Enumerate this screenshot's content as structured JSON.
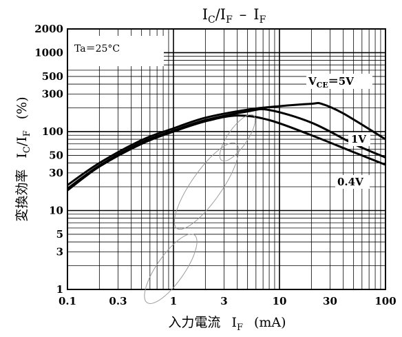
{
  "chart_data": {
    "type": "line",
    "title": {
      "lhs_main": "I",
      "lhs_sub": "C",
      "slash": "/",
      "den_main": "I",
      "den_sub": "F",
      "dash": "–",
      "rhs_main": "I",
      "rhs_sub": "F"
    },
    "xlabel": {
      "jp": "入力電流",
      "sym": "I",
      "sub": "F",
      "unit": "(mA)"
    },
    "ylabel": {
      "jp": "変換効率",
      "sym_num": "I",
      "sub_num": "C",
      "slash": "/",
      "sym_den": "I",
      "sub_den": "F",
      "unit": "(%)"
    },
    "xscale": "log",
    "yscale": "log",
    "xlim": [
      0.1,
      100
    ],
    "ylim": [
      1,
      2000
    ],
    "grid": true,
    "x_ticks": [
      {
        "value": 0.1,
        "label": "0.1"
      },
      {
        "value": 0.3,
        "label": "0.3"
      },
      {
        "value": 1,
        "label": "1"
      },
      {
        "value": 3,
        "label": "3"
      },
      {
        "value": 10,
        "label": "10"
      },
      {
        "value": 30,
        "label": "30"
      },
      {
        "value": 100,
        "label": "100"
      }
    ],
    "y_ticks": [
      {
        "value": 1,
        "label": "1"
      },
      {
        "value": 3,
        "label": "3"
      },
      {
        "value": 5,
        "label": "5"
      },
      {
        "value": 10,
        "label": "10"
      },
      {
        "value": 30,
        "label": "30"
      },
      {
        "value": 50,
        "label": "50"
      },
      {
        "value": 100,
        "label": "100"
      },
      {
        "value": 300,
        "label": "300"
      },
      {
        "value": 500,
        "label": "500"
      },
      {
        "value": 1000,
        "label": "1000"
      },
      {
        "value": 2000,
        "label": "2000"
      }
    ],
    "annotation": "Ta＝25°C",
    "series": [
      {
        "name": "VCE = 5V",
        "label_main": "V",
        "label_sub": "CE",
        "label_rest": "＝5V",
        "x": [
          0.1,
          0.2,
          0.5,
          1,
          2,
          5,
          10,
          20,
          25,
          40,
          100
        ],
        "y": [
          21,
          40,
          78,
          110,
          150,
          190,
          210,
          225,
          225,
          170,
          80
        ]
      },
      {
        "name": "1V",
        "label": "1V",
        "x": [
          0.1,
          0.2,
          0.5,
          1,
          2,
          5,
          8,
          20,
          50,
          100
        ],
        "y": [
          19,
          37,
          73,
          103,
          140,
          180,
          188,
          130,
          70,
          47
        ]
      },
      {
        "name": "0.4V",
        "label": "0.4V",
        "x": [
          0.1,
          0.2,
          0.5,
          1,
          2,
          4,
          8,
          20,
          50,
          100
        ],
        "y": [
          18,
          36,
          70,
          100,
          135,
          160,
          140,
          90,
          55,
          38
        ]
      }
    ]
  }
}
